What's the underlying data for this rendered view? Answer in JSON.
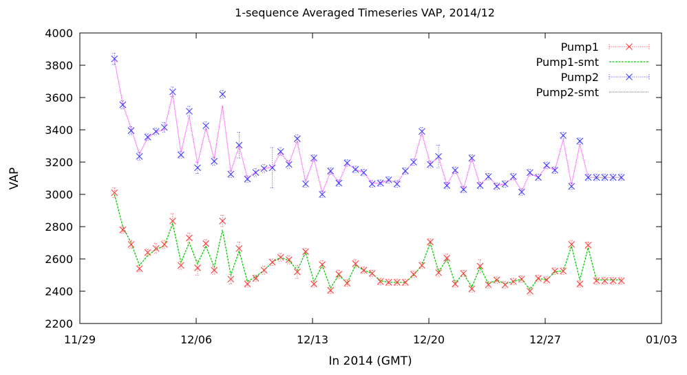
{
  "chart_data": {
    "type": "line",
    "title": "1-sequence Averaged Timeseries VAP, 2014/12",
    "xlabel": "In 2014 (GMT)",
    "ylabel": "VAP",
    "xlim": [
      "2014-11-29",
      "2015-01-03"
    ],
    "ylim": [
      2200,
      4000
    ],
    "x_ticks": [
      "11/29",
      "12/06",
      "12/13",
      "12/20",
      "12/27",
      "01/03"
    ],
    "y_ticks": [
      2200,
      2400,
      2600,
      2800,
      3000,
      3200,
      3400,
      3600,
      3800,
      4000
    ],
    "grid": false,
    "legend_position": "top-right",
    "x": [
      "2014-12-01T02:00",
      "2014-12-01T14:00",
      "2014-12-02T02:00",
      "2014-12-02T14:00",
      "2014-12-03T02:00",
      "2014-12-03T14:00",
      "2014-12-04T02:00",
      "2014-12-04T14:00",
      "2014-12-05T02:00",
      "2014-12-05T14:00",
      "2014-12-06T02:00",
      "2014-12-06T14:00",
      "2014-12-07T02:00",
      "2014-12-07T14:00",
      "2014-12-08T02:00",
      "2014-12-08T14:00",
      "2014-12-09T02:00",
      "2014-12-09T14:00",
      "2014-12-10T02:00",
      "2014-12-10T14:00",
      "2014-12-11T02:00",
      "2014-12-11T14:00",
      "2014-12-12T02:00",
      "2014-12-12T14:00",
      "2014-12-13T02:00",
      "2014-12-13T14:00",
      "2014-12-14T02:00",
      "2014-12-14T14:00",
      "2014-12-15T02:00",
      "2014-12-15T14:00",
      "2014-12-16T02:00",
      "2014-12-16T14:00",
      "2014-12-17T02:00",
      "2014-12-17T14:00",
      "2014-12-18T02:00",
      "2014-12-18T14:00",
      "2014-12-19T02:00",
      "2014-12-19T14:00",
      "2014-12-20T02:00",
      "2014-12-20T14:00",
      "2014-12-21T02:00",
      "2014-12-21T14:00",
      "2014-12-22T02:00",
      "2014-12-22T14:00",
      "2014-12-23T02:00",
      "2014-12-23T14:00",
      "2014-12-24T02:00",
      "2014-12-24T14:00",
      "2014-12-25T02:00",
      "2014-12-25T14:00",
      "2014-12-26T02:00",
      "2014-12-26T14:00",
      "2014-12-27T02:00",
      "2014-12-27T14:00",
      "2014-12-28T02:00",
      "2014-12-28T14:00",
      "2014-12-29T02:00",
      "2014-12-29T14:00",
      "2014-12-30T02:00",
      "2014-12-30T14:00",
      "2014-12-31T02:00",
      "2014-12-31T14:00"
    ],
    "series": [
      {
        "name": "Pump1",
        "style": "points-with-errorbars",
        "marker": "x",
        "color": "#ff3b3b",
        "values": [
          3010,
          2780,
          2690,
          2540,
          2640,
          2665,
          2690,
          2835,
          2560,
          2730,
          2545,
          2695,
          2530,
          2835,
          2475,
          2665,
          2445,
          2480,
          2530,
          2580,
          2610,
          2595,
          2520,
          2645,
          2445,
          2565,
          2405,
          2505,
          2450,
          2570,
          2530,
          2510,
          2460,
          2455,
          2455,
          2455,
          2505,
          2560,
          2705,
          2515,
          2605,
          2445,
          2510,
          2415,
          2555,
          2440,
          2470,
          2440,
          2460,
          2475,
          2400,
          2480,
          2470,
          2525,
          2525,
          2690,
          2445,
          2685,
          2465,
          2465,
          2465,
          2465
        ],
        "errors": [
          30,
          20,
          25,
          20,
          20,
          30,
          25,
          45,
          25,
          30,
          45,
          25,
          25,
          35,
          30,
          40,
          20,
          20,
          25,
          20,
          25,
          25,
          40,
          20,
          20,
          25,
          20,
          25,
          20,
          25,
          20,
          20,
          20,
          20,
          20,
          20,
          20,
          20,
          20,
          25,
          25,
          20,
          20,
          20,
          40,
          20,
          20,
          20,
          20,
          20,
          25,
          20,
          20,
          20,
          20,
          25,
          20,
          20,
          20,
          20,
          20,
          20
        ]
      },
      {
        "name": "Pump1-smt",
        "style": "dashed-line",
        "color": "#00cc00",
        "values": [
          3000,
          2800,
          2700,
          2560,
          2620,
          2660,
          2680,
          2820,
          2580,
          2700,
          2570,
          2680,
          2550,
          2780,
          2500,
          2650,
          2460,
          2490,
          2530,
          2580,
          2610,
          2590,
          2530,
          2640,
          2460,
          2560,
          2420,
          2500,
          2450,
          2560,
          2530,
          2510,
          2465,
          2455,
          2455,
          2455,
          2500,
          2560,
          2700,
          2520,
          2600,
          2450,
          2510,
          2425,
          2550,
          2445,
          2470,
          2445,
          2460,
          2475,
          2410,
          2480,
          2470,
          2520,
          2525,
          2680,
          2470,
          2670,
          2470,
          2470,
          2470,
          2470
        ]
      },
      {
        "name": "Pump2",
        "style": "points-with-errorbars",
        "marker": "x",
        "color": "#4040ff",
        "values": [
          3840,
          3555,
          3395,
          3235,
          3355,
          3390,
          3415,
          3635,
          3245,
          3515,
          3165,
          3425,
          3205,
          3620,
          3125,
          3305,
          3095,
          3135,
          3160,
          3165,
          3265,
          3185,
          3345,
          3065,
          3225,
          3000,
          3145,
          3070,
          3195,
          3155,
          3135,
          3065,
          3070,
          3090,
          3065,
          3145,
          3200,
          3390,
          3185,
          3235,
          3055,
          3150,
          3030,
          3225,
          3055,
          3110,
          3050,
          3065,
          3110,
          3015,
          3135,
          3105,
          3180,
          3150,
          3365,
          3050,
          3330,
          3105,
          3105,
          3105,
          3105,
          3105
        ],
        "errors": [
          35,
          25,
          25,
          25,
          20,
          20,
          30,
          30,
          20,
          30,
          35,
          25,
          25,
          25,
          20,
          80,
          20,
          25,
          25,
          125,
          25,
          25,
          25,
          20,
          20,
          20,
          20,
          20,
          20,
          20,
          20,
          20,
          20,
          20,
          20,
          20,
          20,
          25,
          20,
          70,
          20,
          20,
          20,
          20,
          20,
          20,
          20,
          20,
          20,
          20,
          20,
          20,
          20,
          20,
          20,
          20,
          20,
          20,
          20,
          20,
          20,
          20
        ]
      },
      {
        "name": "Pump2-smt",
        "style": "dotted-line",
        "color": "#ff33ff",
        "values": [
          3830,
          3560,
          3410,
          3250,
          3350,
          3390,
          3400,
          3620,
          3260,
          3480,
          3190,
          3410,
          3220,
          3550,
          3140,
          3300,
          3100,
          3140,
          3160,
          3170,
          3260,
          3190,
          3330,
          3080,
          3220,
          3010,
          3140,
          3075,
          3190,
          3155,
          3135,
          3070,
          3070,
          3090,
          3070,
          3145,
          3200,
          3380,
          3190,
          3230,
          3060,
          3150,
          3035,
          3220,
          3060,
          3110,
          3055,
          3065,
          3105,
          3020,
          3130,
          3105,
          3175,
          3150,
          3340,
          3060,
          3310,
          3105,
          3105,
          3105,
          3105,
          3105
        ]
      }
    ]
  }
}
